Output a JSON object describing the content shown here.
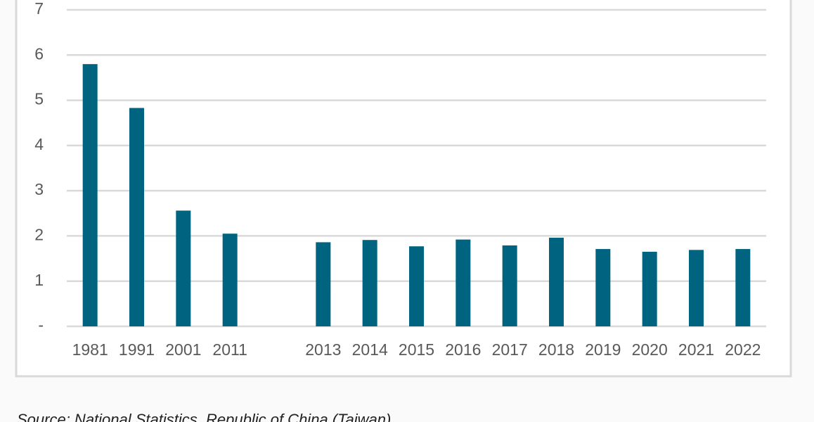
{
  "chart_data": {
    "type": "bar",
    "categories": [
      "1981",
      "1991",
      "2001",
      "2011",
      null,
      "2013",
      "2014",
      "2015",
      "2016",
      "2017",
      "2018",
      "2019",
      "2020",
      "2021",
      "2022"
    ],
    "values": [
      5.8,
      4.83,
      2.56,
      2.05,
      null,
      1.86,
      1.91,
      1.77,
      1.92,
      1.79,
      1.96,
      1.71,
      1.65,
      1.69,
      1.71
    ],
    "color": "#00637f",
    "ylim": [
      0,
      7
    ],
    "yticks": [
      {
        "value": 0,
        "label": "-"
      },
      1,
      2,
      3,
      4,
      5,
      6,
      7
    ],
    "grid": true,
    "source": "Source: National Statistics, Republic of China (Taiwan)"
  }
}
